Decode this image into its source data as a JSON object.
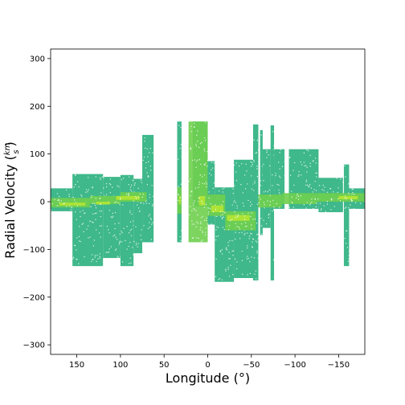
{
  "chart_data": {
    "type": "scatter",
    "title": "",
    "xlabel": "Longitude (°)",
    "ylabel": "Radial Velocity (km/s)",
    "ylabel_prefix": "Radial Velocity (",
    "ylabel_num": "km",
    "ylabel_den": "s",
    "ylabel_suffix": ")",
    "xlim": [
      180,
      -180
    ],
    "ylim": [
      -320,
      320
    ],
    "x_ticks": [
      150,
      100,
      50,
      0,
      -50,
      -100,
      -150
    ],
    "x_tick_labels": [
      "150",
      "100",
      "50",
      "0",
      "−50",
      "−100",
      "−150"
    ],
    "y_ticks": [
      -300,
      -200,
      -100,
      0,
      100,
      200,
      300
    ],
    "y_tick_labels": [
      "−300",
      "−200",
      "−100",
      "0",
      "100",
      "200",
      "300"
    ],
    "grid": false,
    "colors": {
      "outer": "#2ab07e",
      "inner": "#6fcf4e",
      "core": "#b5e532",
      "axes": "#000000"
    },
    "density_regions": {
      "outer": [
        {
          "lon": [
            180,
            155
          ],
          "vel": [
            -20,
            28
          ]
        },
        {
          "lon": [
            155,
            120
          ],
          "vel": [
            -135,
            58
          ]
        },
        {
          "lon": [
            120,
            100
          ],
          "vel": [
            -118,
            52
          ]
        },
        {
          "lon": [
            100,
            85
          ],
          "vel": [
            -135,
            56
          ]
        },
        {
          "lon": [
            85,
            75
          ],
          "vel": [
            -108,
            48
          ]
        },
        {
          "lon": [
            75,
            62
          ],
          "vel": [
            -85,
            140
          ]
        },
        {
          "lon": [
            35,
            30
          ],
          "vel": [
            -85,
            168
          ]
        },
        {
          "lon": [
            17,
            0
          ],
          "vel": [
            -10,
            168
          ]
        },
        {
          "lon": [
            0,
            -8
          ],
          "vel": [
            -48,
            85
          ]
        },
        {
          "lon": [
            -8,
            -30
          ],
          "vel": [
            -168,
            30
          ]
        },
        {
          "lon": [
            -30,
            -52
          ],
          "vel": [
            -160,
            88
          ]
        },
        {
          "lon": [
            -52,
            -58
          ],
          "vel": [
            -165,
            162
          ]
        },
        {
          "lon": [
            -60,
            -63
          ],
          "vel": [
            -70,
            150
          ]
        },
        {
          "lon": [
            -63,
            -72
          ],
          "vel": [
            -55,
            110
          ]
        },
        {
          "lon": [
            -72,
            -76
          ],
          "vel": [
            -165,
            160
          ]
        },
        {
          "lon": [
            -76,
            -88
          ],
          "vel": [
            -15,
            110
          ]
        },
        {
          "lon": [
            -93,
            -127
          ],
          "vel": [
            -15,
            110
          ]
        },
        {
          "lon": [
            -127,
            -155
          ],
          "vel": [
            -22,
            50
          ]
        },
        {
          "lon": [
            -156,
            -162
          ],
          "vel": [
            -135,
            78
          ]
        },
        {
          "lon": [
            -162,
            -180
          ],
          "vel": [
            -15,
            28
          ]
        }
      ],
      "inner": [
        {
          "lon": [
            180,
            135
          ],
          "vel": [
            -12,
            8
          ]
        },
        {
          "lon": [
            135,
            100
          ],
          "vel": [
            -5,
            12
          ]
        },
        {
          "lon": [
            100,
            70
          ],
          "vel": [
            0,
            20
          ]
        },
        {
          "lon": [
            35,
            30
          ],
          "vel": [
            -25,
            30
          ]
        },
        {
          "lon": [
            22,
            0
          ],
          "vel": [
            -85,
            168
          ]
        },
        {
          "lon": [
            0,
            -20
          ],
          "vel": [
            -30,
            15
          ]
        },
        {
          "lon": [
            -20,
            -55
          ],
          "vel": [
            -60,
            -20
          ]
        },
        {
          "lon": [
            -58,
            -85
          ],
          "vel": [
            -12,
            15
          ]
        },
        {
          "lon": [
            -85,
            -125
          ],
          "vel": [
            -5,
            18
          ]
        },
        {
          "lon": [
            -125,
            -180
          ],
          "vel": [
            0,
            18
          ]
        }
      ],
      "core": [
        {
          "lon": [
            170,
            140
          ],
          "vel": [
            -8,
            -2
          ]
        },
        {
          "lon": [
            128,
            112
          ],
          "vel": [
            -6,
            0
          ]
        },
        {
          "lon": [
            105,
            78
          ],
          "vel": [
            4,
            12
          ]
        },
        {
          "lon": [
            33,
            31
          ],
          "vel": [
            -5,
            12
          ]
        },
        {
          "lon": [
            10,
            3
          ],
          "vel": [
            -8,
            12
          ]
        },
        {
          "lon": [
            -4,
            -18
          ],
          "vel": [
            -22,
            -8
          ]
        },
        {
          "lon": [
            -22,
            -48
          ],
          "vel": [
            -40,
            -28
          ]
        },
        {
          "lon": [
            -150,
            -172
          ],
          "vel": [
            5,
            12
          ]
        }
      ]
    }
  }
}
